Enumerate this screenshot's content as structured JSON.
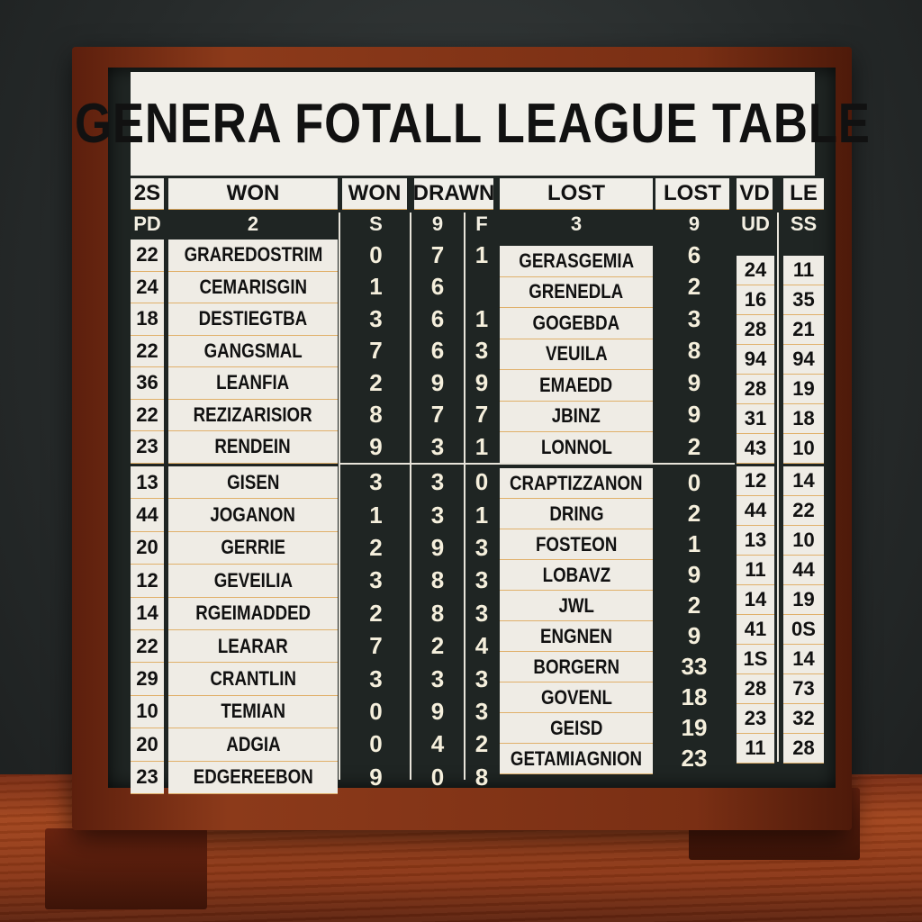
{
  "title": "GENERA FOTALL LEAGUE TABLE",
  "colors": {
    "board": "#1f2523",
    "card": "#efece5",
    "frame_wood": "#8c3a1a",
    "digits": "#f5efdc"
  },
  "headers": {
    "pd": "2S",
    "team1": "WON",
    "won": "WON",
    "drawn": "DRAWN",
    "team2": "LOST",
    "lost": "LOST",
    "vd": "VD",
    "le": "LE"
  },
  "subheaders": {
    "pd": "PD",
    "team1": "2",
    "won": "S",
    "drawn": "9",
    "f": "F",
    "team2": "3",
    "lost": "9",
    "vd": "UD",
    "le": "SS"
  },
  "upper": {
    "pd": [
      "22",
      "24",
      "18",
      "22",
      "36",
      "22",
      "23"
    ],
    "team1": [
      "GRAREDOSTRIM",
      "CEMARISGIN",
      "DESTIEGTBA",
      "GANGSMAL",
      "LEANFIA",
      "REZIZARISIOR",
      "RENDEIN"
    ],
    "won": [
      "0",
      "1",
      "3",
      "7",
      "2",
      "8",
      "9"
    ],
    "drawn": [
      "7",
      "6",
      "6",
      "6",
      "9",
      "7",
      "3"
    ],
    "f": [
      "1",
      "",
      "1",
      "3",
      "9",
      "7",
      "1"
    ],
    "team2": [
      "GERASGEMIA",
      "GRENEDLA",
      "GOGEBDA",
      "VEUILA",
      "EMAEDD",
      "JBINZ",
      "LONNOL"
    ],
    "lost": [
      "6",
      "2",
      "3",
      "8",
      "9",
      "9",
      "2"
    ],
    "vd": [
      "24",
      "16",
      "28",
      "94",
      "28",
      "31",
      "43"
    ],
    "le": [
      "11",
      "35",
      "21",
      "94",
      "19",
      "18",
      "10"
    ]
  },
  "lower": {
    "pd": [
      "13",
      "44",
      "20",
      "12",
      "14",
      "22",
      "29",
      "10",
      "20",
      "23"
    ],
    "team1": [
      "GISEN",
      "JOGANON",
      "GERRIE",
      "GEVEILIA",
      "RGEIMADDED",
      "LEARAR",
      "CRANTLIN",
      "TEMIAN",
      "ADGIA",
      "EDGEREEBON"
    ],
    "won": [
      "3",
      "1",
      "2",
      "3",
      "2",
      "7",
      "3",
      "0",
      "0",
      "9"
    ],
    "drawn": [
      "3",
      "3",
      "9",
      "8",
      "8",
      "2",
      "3",
      "9",
      "4",
      "0"
    ],
    "f": [
      "0",
      "1",
      "3",
      "3",
      "3",
      "4",
      "3",
      "3",
      "2",
      "8"
    ],
    "team2": [
      "CRAPTIZZANON",
      "DRING",
      "FOSTEON",
      "LOBAVZ",
      "JWL",
      "ENGNEN",
      "BORGERN",
      "GOVENL",
      "GEISD",
      "GETAMIAGNION"
    ],
    "lost": [
      "0",
      "2",
      "1",
      "9",
      "2",
      "9",
      "33",
      "18",
      "19",
      "23"
    ],
    "vd": [
      "12",
      "44",
      "13",
      "11",
      "14",
      "41",
      "1S",
      "28",
      "23",
      "11"
    ],
    "le": [
      "14",
      "22",
      "10",
      "44",
      "19",
      "0S",
      "14",
      "73",
      "32",
      "28"
    ]
  }
}
